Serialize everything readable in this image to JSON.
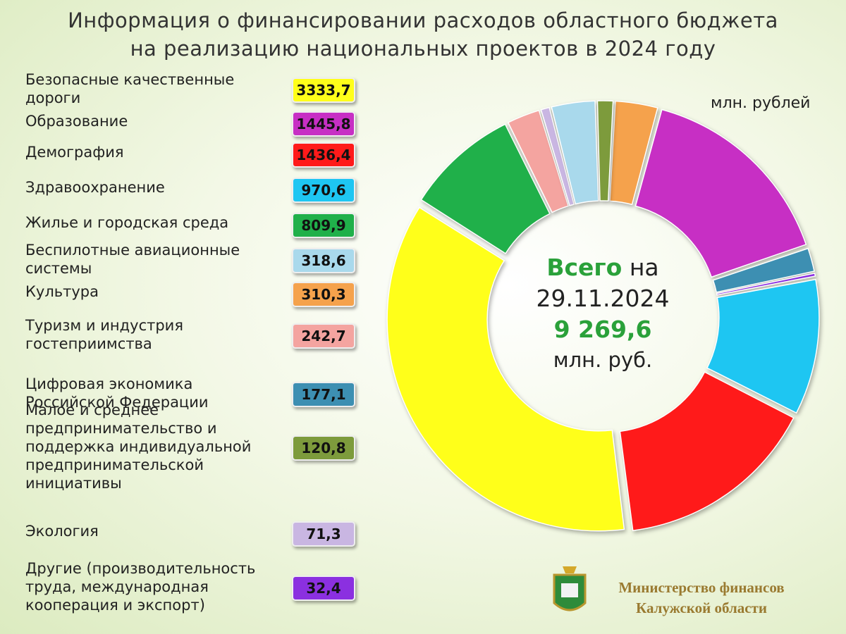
{
  "chart_data": {
    "type": "donut",
    "title": [
      "Информация о финансировании расходов областного бюджета",
      "на реализацию национальных проектов в 2024 году"
    ],
    "unit": "млн. рублей",
    "categories": [
      "Безопасные качественные дороги",
      "Образование",
      "Демография",
      "Здравоохранение",
      "Жилье и городская среда",
      "Беспилотные авиационные системы",
      "Культура",
      "Туризм и индустрия гостеприимства",
      "Цифровая экономика Российской Федерации",
      "Малое и среднее предпринимательство и поддержка индивидуальной предпринимательской инициативы",
      "Экология",
      "Другие (производительность труда, международная кооперация и экспорт)"
    ],
    "values": [
      3333.7,
      1445.8,
      1436.4,
      970.6,
      809.9,
      318.6,
      310.3,
      242.7,
      177.1,
      120.8,
      71.3,
      32.4
    ],
    "value_labels": [
      "3333,7",
      "1445,8",
      "1436,4",
      "970,6",
      "809,9",
      "318,6",
      "310,3",
      "242,7",
      "177,1",
      "120,8",
      "71,3",
      "32,4"
    ],
    "colors": [
      "#ffff1a",
      "#c72fc4",
      "#ff1a1a",
      "#1ec6f2",
      "#20b04a",
      "#a9d9ec",
      "#f5a24c",
      "#f4a4a0",
      "#3d8fb2",
      "#7d9b3c",
      "#c9b6e2",
      "#8b30e0"
    ],
    "center": {
      "lead": "Всего",
      "lead_rest": "на",
      "date": "29.11.2024",
      "total": "9 269,6",
      "unit": "млн. руб."
    },
    "footer": {
      "line1": "Министерство финансов",
      "line2": "Калужской области"
    }
  }
}
